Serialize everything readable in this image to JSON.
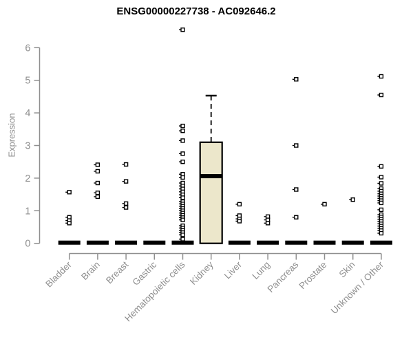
{
  "chart_data": {
    "type": "box",
    "title": "ENSG00000227738 - AC092646.2",
    "ylabel": "Expression",
    "xlabel": "",
    "ylim": [
      0,
      6
    ],
    "y_ticks": [
      0,
      1,
      2,
      3,
      4,
      5,
      6
    ],
    "grid": false,
    "legend": false,
    "axis_color": "#8f8f8f",
    "marker_color": "#000000",
    "box_fill_color": "#ECE7CB",
    "box_border_color": "#000000",
    "categories": [
      {
        "label": "Bladder",
        "box": {
          "q1": 0,
          "median": 0,
          "q3": 0,
          "whisker_low": 0,
          "whisker_high": 0
        },
        "points": [
          1.57,
          0.8,
          0.7,
          0.62
        ]
      },
      {
        "label": "Brain",
        "box": {
          "q1": 0,
          "median": 0,
          "q3": 0,
          "whisker_low": 0,
          "whisker_high": 0
        },
        "points": [
          2.41,
          2.21,
          1.85,
          1.55,
          1.43
        ]
      },
      {
        "label": "Breast",
        "box": {
          "q1": 0,
          "median": 0,
          "q3": 0,
          "whisker_low": 0,
          "whisker_high": 0
        },
        "points": [
          2.42,
          1.9,
          1.22,
          1.1
        ]
      },
      {
        "label": "Gastric",
        "box": {
          "q1": 0,
          "median": 0,
          "q3": 0,
          "whisker_low": 0,
          "whisker_high": 0
        },
        "points": []
      },
      {
        "label": "Hematopoietic cells",
        "box": {
          "q1": 0,
          "median": 0,
          "q3": 0,
          "whisker_low": 0,
          "whisker_high": 0
        },
        "points": [
          6.55,
          3.6,
          3.45,
          3.15,
          2.75,
          2.5,
          2.12,
          2.02,
          1.85,
          1.76,
          1.67,
          1.58,
          1.49,
          1.4,
          1.28,
          1.21,
          1.14,
          1.07,
          1.0,
          0.93,
          0.86,
          0.79,
          0.72,
          0.54,
          0.47,
          0.4,
          0.33,
          0.26,
          0.13
        ]
      },
      {
        "label": "Kidney",
        "box": {
          "q1": 0,
          "median": 2.06,
          "q3": 3.1,
          "whisker_low": 0,
          "whisker_high": 4.53
        },
        "points": []
      },
      {
        "label": "Liver",
        "box": {
          "q1": 0,
          "median": 0,
          "q3": 0,
          "whisker_low": 0,
          "whisker_high": 0
        },
        "points": [
          1.2,
          0.85,
          0.75,
          0.68
        ]
      },
      {
        "label": "Lung",
        "box": {
          "q1": 0,
          "median": 0,
          "q3": 0,
          "whisker_low": 0,
          "whisker_high": 0
        },
        "points": [
          0.82,
          0.72,
          0.62
        ]
      },
      {
        "label": "Pancreas",
        "box": {
          "q1": 0,
          "median": 0,
          "q3": 0,
          "whisker_low": 0,
          "whisker_high": 0
        },
        "points": [
          5.03,
          3.0,
          1.65,
          0.8
        ]
      },
      {
        "label": "Prostate",
        "box": {
          "q1": 0,
          "median": 0,
          "q3": 0,
          "whisker_low": 0,
          "whisker_high": 0
        },
        "points": [
          1.2
        ]
      },
      {
        "label": "Skin",
        "box": {
          "q1": 0,
          "median": 0,
          "q3": 0,
          "whisker_low": 0,
          "whisker_high": 0
        },
        "points": [
          1.34
        ]
      },
      {
        "label": "Unknown / Other",
        "box": {
          "q1": 0,
          "median": 0,
          "q3": 0,
          "whisker_low": 0,
          "whisker_high": 0
        },
        "points": [
          5.12,
          4.55,
          2.36,
          2.03,
          1.84,
          1.68,
          1.6,
          1.52,
          1.45,
          1.38,
          1.31,
          1.24,
          1.03,
          0.88,
          0.81,
          0.74,
          0.67,
          0.6,
          0.53,
          0.46,
          0.39,
          0.31
        ]
      }
    ]
  }
}
